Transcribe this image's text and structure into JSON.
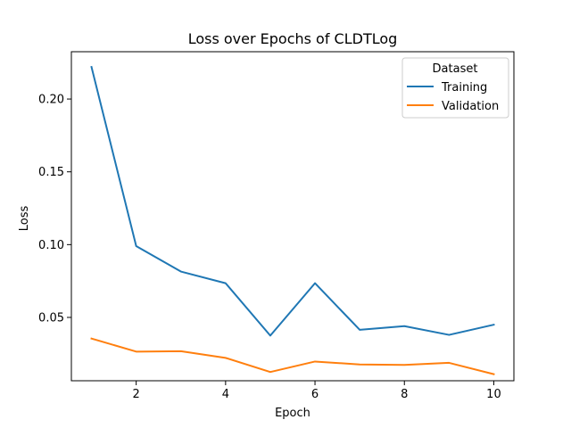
{
  "chart_data": {
    "type": "line",
    "title": "Loss over Epochs of CLDTLog",
    "xlabel": "Epoch",
    "ylabel": "Loss",
    "xlim": [
      0.55,
      10.45
    ],
    "ylim": [
      0.0065,
      0.2325
    ],
    "xticks": [
      2,
      4,
      6,
      8,
      10
    ],
    "yticks": [
      0.05,
      0.1,
      0.15,
      0.2
    ],
    "ytick_labels": [
      "0.05",
      "0.10",
      "0.15",
      "0.20"
    ],
    "grid": false,
    "legend": {
      "title": "Dataset",
      "placement": "top-right"
    },
    "x": [
      1,
      2,
      3,
      4,
      5,
      6,
      7,
      8,
      9,
      10
    ],
    "series": [
      {
        "name": "Training",
        "color": "#1f77b4",
        "values": [
          0.222,
          0.099,
          0.0815,
          0.0735,
          0.0375,
          0.0735,
          0.0415,
          0.044,
          0.038,
          0.045
        ]
      },
      {
        "name": "Validation",
        "color": "#ff7f0e",
        "values": [
          0.0355,
          0.0265,
          0.0268,
          0.0222,
          0.0125,
          0.0197,
          0.0177,
          0.0174,
          0.0188,
          0.011
        ]
      }
    ]
  }
}
